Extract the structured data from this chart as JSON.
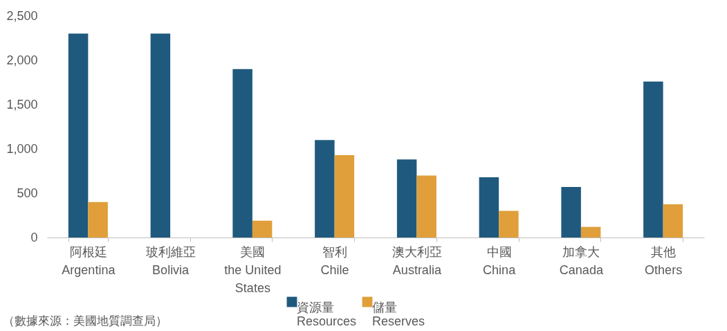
{
  "chart_data": {
    "type": "bar",
    "categories": [
      "阿根廷\nArgentina",
      "玻利維亞\nBolivia",
      "美國\nthe United\nStates",
      "智利\nChile",
      "澳大利亞\nAustralia",
      "中國\nChina",
      "加拿大\nCanada",
      "其他\nOthers"
    ],
    "series": [
      {
        "name": "資源量\nResources",
        "color": "#1f5a7e",
        "values": [
          2300,
          2300,
          1900,
          1100,
          880,
          680,
          570,
          1760
        ]
      },
      {
        "name": "儲量\nReserves",
        "color": "#e09f3a",
        "values": [
          400,
          null,
          190,
          930,
          700,
          300,
          120,
          375
        ]
      }
    ],
    "ylim": [
      0,
      2500
    ],
    "yticks": [
      0,
      500,
      {
        "value": 1000,
        "label": "1,000"
      },
      {
        "value": 1500,
        "label": "1,500"
      },
      {
        "value": 2000,
        "label": "2,000"
      },
      {
        "value": 2500,
        "label": "2,500"
      }
    ],
    "grid": false,
    "legend": "bottom",
    "annotations": [
      "（數據來源：美國地質調查局）"
    ]
  }
}
